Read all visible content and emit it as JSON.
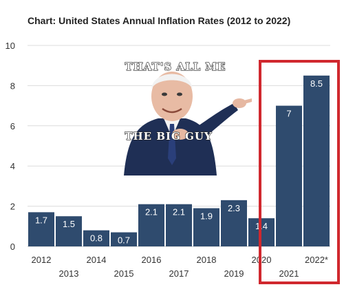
{
  "chart_data": {
    "type": "bar",
    "title": "Chart: United States Annual Inflation Rates (2012 to 2022)",
    "xlabel": "",
    "ylabel": "",
    "categories": [
      "2012",
      "2013",
      "2014",
      "2015",
      "2016",
      "2017",
      "2018",
      "2019",
      "2020",
      "2021",
      "2022*"
    ],
    "values": [
      1.7,
      1.5,
      0.8,
      0.7,
      2.1,
      2.1,
      1.9,
      2.3,
      1.4,
      7,
      8.5
    ],
    "value_labels": [
      "1.7",
      "1.5",
      "0.8",
      "0.7",
      "2.1",
      "2.1",
      "1.9",
      "2.3",
      "1.4",
      "7",
      "8.5"
    ],
    "ylim": [
      0,
      10
    ],
    "yticks": [
      "0",
      "2",
      "4",
      "6",
      "8",
      "10"
    ],
    "grid": true,
    "bar_color": "#2f4b6e",
    "highlight": {
      "categories": [
        "2021",
        "2022*"
      ],
      "color": "#d0282e"
    }
  },
  "meme": {
    "caption_top": "THAT'S ALL ME",
    "caption_bottom": "THE BIG GUY",
    "image": "pointing-man"
  }
}
